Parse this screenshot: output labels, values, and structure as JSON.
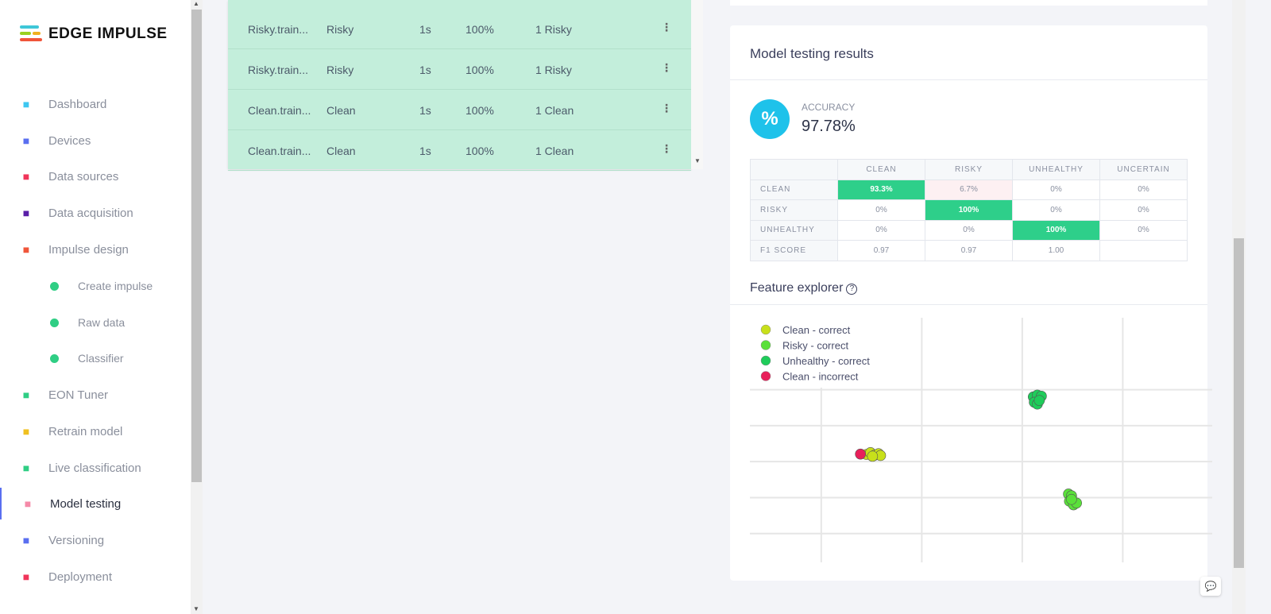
{
  "brand": {
    "name": "EDGE IMPULSE"
  },
  "sidebar": {
    "items": [
      {
        "label": "Dashboard",
        "icon": "monitor-icon",
        "color": "#3ec7f0"
      },
      {
        "label": "Devices",
        "icon": "chip-icon",
        "color": "#5a6ff0"
      },
      {
        "label": "Data sources",
        "icon": "magic-wand-icon",
        "color": "#f0355a"
      },
      {
        "label": "Data acquisition",
        "icon": "database-icon",
        "color": "#5a1fa8"
      },
      {
        "label": "Impulse design",
        "icon": "pulse-icon",
        "color": "#f0553a"
      },
      {
        "label": "Create impulse",
        "sub": true
      },
      {
        "label": "Raw data",
        "sub": true
      },
      {
        "label": "Classifier",
        "sub": true
      },
      {
        "label": "EON Tuner",
        "icon": "compass-icon",
        "color": "#2fce84"
      },
      {
        "label": "Retrain model",
        "icon": "shuffle-icon",
        "color": "#f0c020"
      },
      {
        "label": "Live classification",
        "icon": "curve-icon",
        "color": "#2fce84"
      },
      {
        "label": "Model testing",
        "icon": "clipboard-check-icon",
        "color": "#f58aa8",
        "active": true
      },
      {
        "label": "Versioning",
        "icon": "branch-icon",
        "color": "#5a6ff0"
      },
      {
        "label": "Deployment",
        "icon": "box-icon",
        "color": "#f0355a"
      }
    ]
  },
  "samples": [
    {
      "name": "Risky.train...",
      "label": "Risky",
      "length": "1s",
      "accuracy": "100%",
      "result": "1 Risky"
    },
    {
      "name": "Risky.train...",
      "label": "Risky",
      "length": "1s",
      "accuracy": "100%",
      "result": "1 Risky"
    },
    {
      "name": "Clean.train...",
      "label": "Clean",
      "length": "1s",
      "accuracy": "100%",
      "result": "1 Clean"
    },
    {
      "name": "Clean.train...",
      "label": "Clean",
      "length": "1s",
      "accuracy": "100%",
      "result": "1 Clean"
    }
  ],
  "results": {
    "title": "Model testing results",
    "accuracy_label": "ACCURACY",
    "accuracy_value": "97.78%",
    "accuracy_icon": "%",
    "matrix": {
      "columns": [
        "",
        "CLEAN",
        "RISKY",
        "UNHEALTHY",
        "UNCERTAIN"
      ],
      "rows": [
        [
          "CLEAN",
          "93.3%",
          "6.7%",
          "0%",
          "0%"
        ],
        [
          "RISKY",
          "0%",
          "100%",
          "0%",
          "0%"
        ],
        [
          "UNHEALTHY",
          "0%",
          "0%",
          "100%",
          "0%"
        ],
        [
          "F1 SCORE",
          "0.97",
          "0.97",
          "1.00",
          ""
        ]
      ]
    },
    "feature_explorer": "Feature explorer"
  },
  "chart_data": {
    "type": "scatter",
    "title": "",
    "xlabel": "",
    "ylabel": "",
    "grid": true,
    "legend": "top-left",
    "xlim": [
      0,
      4.6
    ],
    "ylim": [
      0,
      6.8
    ],
    "series": [
      {
        "name": "Clean - correct",
        "color": "#c8e01a",
        "points": [
          [
            1.16,
            3.0
          ],
          [
            1.2,
            3.05
          ],
          [
            1.24,
            2.98
          ],
          [
            1.28,
            3.02
          ],
          [
            1.3,
            2.97
          ],
          [
            1.22,
            2.95
          ]
        ]
      },
      {
        "name": "Risky - correct",
        "color": "#5ae03a",
        "points": [
          [
            3.17,
            1.9
          ],
          [
            3.2,
            1.85
          ],
          [
            3.18,
            1.7
          ],
          [
            3.22,
            1.6
          ],
          [
            3.25,
            1.65
          ],
          [
            3.2,
            1.75
          ]
        ]
      },
      {
        "name": "Unhealthy - correct",
        "color": "#1fcc5a",
        "points": [
          [
            2.82,
            4.6
          ],
          [
            2.86,
            4.65
          ],
          [
            2.9,
            4.62
          ],
          [
            2.83,
            4.45
          ],
          [
            2.86,
            4.4
          ],
          [
            2.88,
            4.5
          ]
        ]
      },
      {
        "name": "Clean - incorrect",
        "color": "#e8205a",
        "points": [
          [
            1.1,
            3.01
          ]
        ]
      }
    ]
  }
}
